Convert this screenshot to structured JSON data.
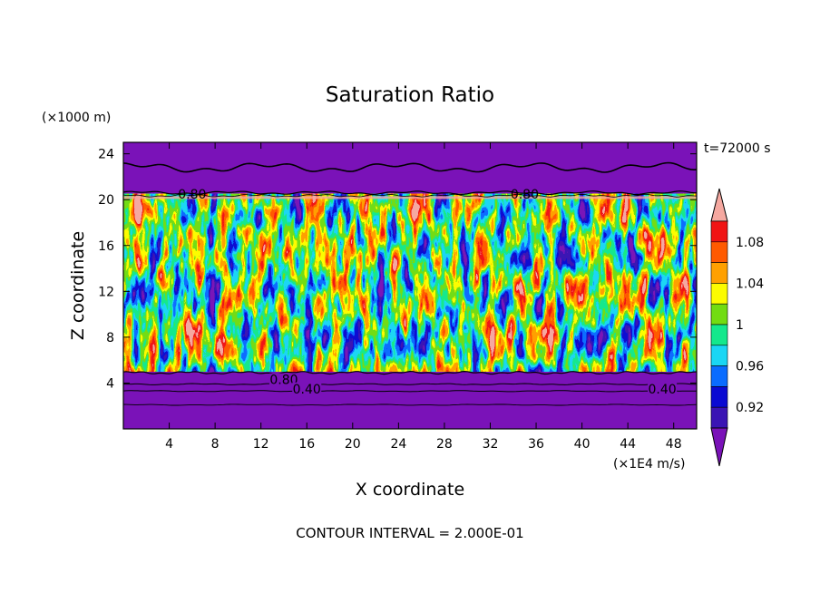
{
  "chart_data": {
    "type": "heatmap",
    "title": "Saturation Ratio",
    "xlabel": "X coordinate",
    "ylabel": "Z coordinate",
    "x_unit": "(×1E4 m/s)",
    "y_unit": "(×1000 m)",
    "time_label": "t=72000 s",
    "footer": "CONTOUR INTERVAL = 2.000E-01",
    "xlim": [
      0,
      50
    ],
    "ylim": [
      0,
      25
    ],
    "x_ticks": [
      "4",
      "8",
      "12",
      "16",
      "20",
      "24",
      "28",
      "32",
      "36",
      "40",
      "44",
      "48"
    ],
    "y_ticks": [
      "4",
      "8",
      "12",
      "16",
      "20",
      "24"
    ],
    "colorbar": {
      "labels": [
        "1.08",
        "1.04",
        "1",
        "0.96",
        "0.92"
      ],
      "bins": [
        {
          "min": null,
          "max": 0.9,
          "color": "#7a12b8"
        },
        {
          "min": 0.9,
          "max": 0.92,
          "color": "#3a14b4"
        },
        {
          "min": 0.92,
          "max": 0.94,
          "color": "#0a0ad2"
        },
        {
          "min": 0.94,
          "max": 0.96,
          "color": "#0a6cff"
        },
        {
          "min": 0.96,
          "max": 0.98,
          "color": "#1ad6f4"
        },
        {
          "min": 0.98,
          "max": 1.0,
          "color": "#14e88c"
        },
        {
          "min": 1.0,
          "max": 1.02,
          "color": "#72dc12"
        },
        {
          "min": 1.02,
          "max": 1.04,
          "color": "#fcfc00"
        },
        {
          "min": 1.04,
          "max": 1.06,
          "color": "#ffa000"
        },
        {
          "min": 1.06,
          "max": 1.08,
          "color": "#ff5a00"
        },
        {
          "min": 1.08,
          "max": 1.1,
          "color": "#f01414"
        },
        {
          "min": 1.1,
          "max": null,
          "color": "#f5a8a0"
        }
      ]
    },
    "contour_labels": [
      {
        "text": "0.80",
        "x": 6,
        "z": 20.5
      },
      {
        "text": "0.80",
        "x": 35,
        "z": 20.5
      },
      {
        "text": "0.80",
        "x": 14,
        "z": 4.3
      },
      {
        "text": "0.40",
        "x": 16,
        "z": 3.5
      },
      {
        "text": "0.40",
        "x": 47,
        "z": 3.5
      }
    ],
    "regions": [
      {
        "zmin": 0,
        "zmax": 5,
        "description": "subsaturated, below 0.9"
      },
      {
        "zmin": 5,
        "zmax": 20.5,
        "description": "turbulent field ranging 0.9–1.1"
      },
      {
        "zmin": 20.5,
        "zmax": 25,
        "description": "subsaturated, below 0.9"
      }
    ]
  }
}
